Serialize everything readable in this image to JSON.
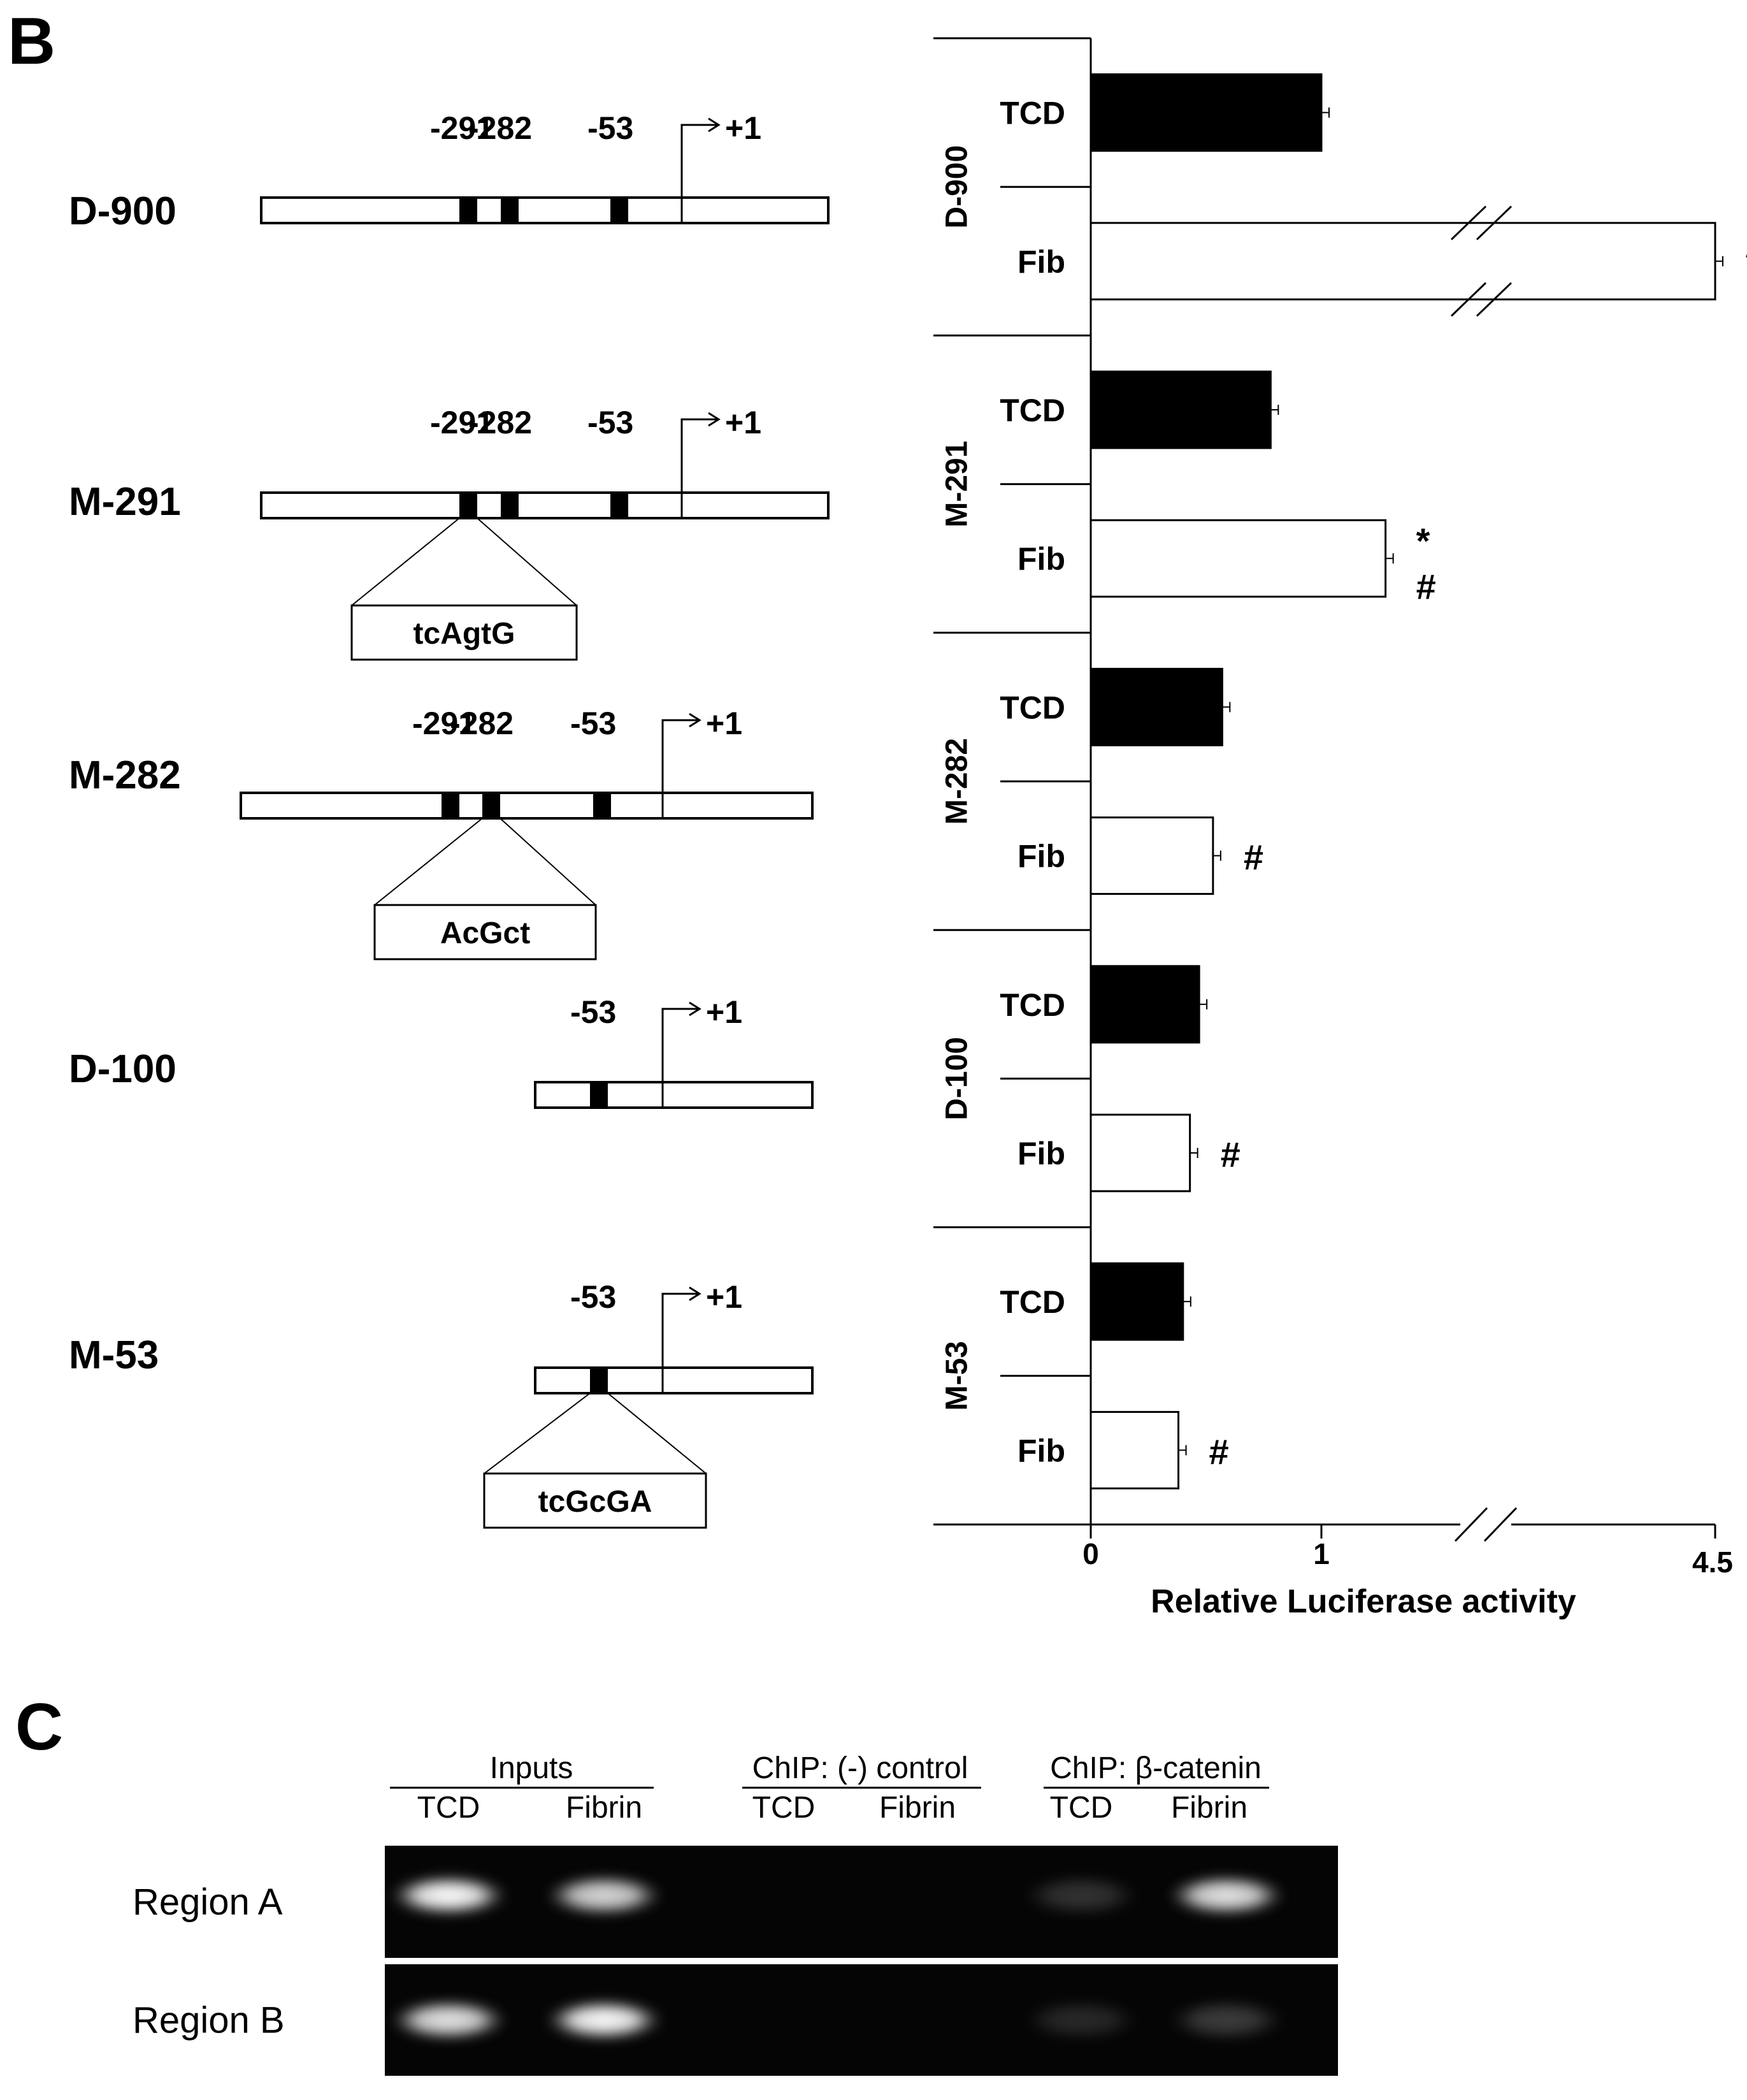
{
  "panel_b": {
    "letter": "B",
    "constructs": [
      {
        "name": "D-900",
        "positions": [
          "-291",
          "-282",
          "-53"
        ],
        "tss": "+1",
        "boxes": [
          "-291",
          "-282",
          "-53"
        ],
        "mutation": ""
      },
      {
        "name": "M-291",
        "positions": [
          "-291",
          "-282",
          "-53"
        ],
        "tss": "+1",
        "boxes": [
          "-291",
          "-282",
          "-53"
        ],
        "mutation": "tcAgtG",
        "mutated_site": "-291"
      },
      {
        "name": "M-282",
        "positions": [
          "-291",
          "-282",
          "-53"
        ],
        "tss": "+1",
        "boxes": [
          "-291",
          "-282",
          "-53"
        ],
        "mutation": "AcGct",
        "mutated_site": "-282"
      },
      {
        "name": "D-100",
        "positions": [
          "-53"
        ],
        "tss": "+1",
        "boxes": [
          "-53"
        ],
        "mutation": ""
      },
      {
        "name": "M-53",
        "positions": [
          "-53"
        ],
        "tss": "+1",
        "boxes": [
          "-53"
        ],
        "mutation": "tcGcGA",
        "mutated_site": "-53"
      }
    ]
  },
  "chart_data": {
    "type": "bar",
    "orientation": "horizontal",
    "xlabel": "Relative Luciferase activity",
    "x_ticks": [
      "0",
      "1",
      "4.5"
    ],
    "x_break": true,
    "groups": [
      {
        "name": "D-900",
        "bars": [
          {
            "label": "TCD",
            "value": 1.0,
            "fill": "black",
            "sig": ""
          },
          {
            "label": "Fib",
            "value": 4.5,
            "fill": "white",
            "sig": "*",
            "broken": true
          }
        ]
      },
      {
        "name": "M-291",
        "bars": [
          {
            "label": "TCD",
            "value": 0.78,
            "fill": "black",
            "sig": ""
          },
          {
            "label": "Fib",
            "value": 1.57,
            "fill": "white",
            "sig": "*\n#"
          }
        ]
      },
      {
        "name": "M-282",
        "bars": [
          {
            "label": "TCD",
            "value": 0.57,
            "fill": "black",
            "sig": ""
          },
          {
            "label": "Fib",
            "value": 0.53,
            "fill": "white",
            "sig": "#"
          }
        ]
      },
      {
        "name": "D-100",
        "bars": [
          {
            "label": "TCD",
            "value": 0.47,
            "fill": "black",
            "sig": ""
          },
          {
            "label": "Fib",
            "value": 0.43,
            "fill": "white",
            "sig": "#"
          }
        ]
      },
      {
        "name": "M-53",
        "bars": [
          {
            "label": "TCD",
            "value": 0.4,
            "fill": "black",
            "sig": ""
          },
          {
            "label": "Fib",
            "value": 0.38,
            "fill": "white",
            "sig": "#"
          }
        ]
      }
    ],
    "colors": {
      "tcd": "#000000",
      "fib": "#ffffff",
      "axis": "#000000"
    }
  },
  "panel_c": {
    "letter": "C",
    "header_groups": [
      {
        "title": "Inputs",
        "lanes": [
          "TCD",
          "Fibrin"
        ]
      },
      {
        "title": "ChIP: (-) control",
        "lanes": [
          "TCD",
          "Fibrin"
        ]
      },
      {
        "title": "ChIP: β-catenin",
        "lanes": [
          "TCD",
          "Fibrin"
        ]
      }
    ],
    "rows": [
      {
        "label": "Region A",
        "band_intensity": [
          1.0,
          0.85,
          0.0,
          0.0,
          0.18,
          0.9
        ]
      },
      {
        "label": "Region B",
        "band_intensity": [
          0.9,
          1.0,
          0.0,
          0.0,
          0.14,
          0.22
        ]
      }
    ]
  }
}
